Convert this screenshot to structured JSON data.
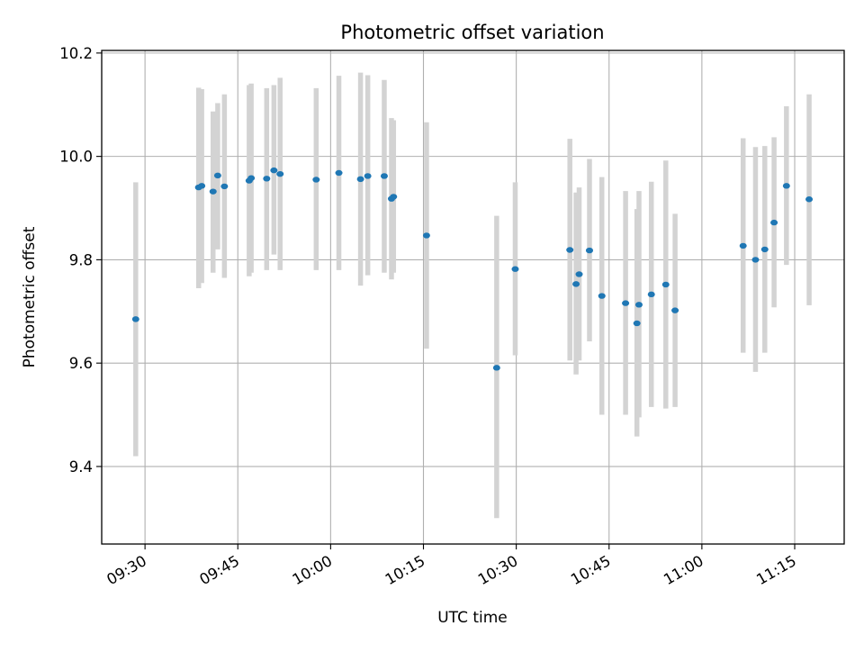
{
  "chart_data": {
    "type": "scatter",
    "title": "Photometric offset variation",
    "xlabel": "UTC time",
    "ylabel": "Photometric offset",
    "xlim": [
      "09:23",
      "11:23"
    ],
    "ylim": [
      9.25,
      10.205
    ],
    "x_ticks": [
      "09:30",
      "09:45",
      "10:00",
      "10:15",
      "10:30",
      "10:45",
      "11:00",
      "11:15"
    ],
    "y_ticks": [
      "9.4",
      "9.6",
      "9.8",
      "10.0",
      "10.2"
    ],
    "grid": true,
    "colors": {
      "marker": "#1f77b4",
      "errorbar": "#d3d3d3",
      "grid": "#b0b0b0"
    },
    "series": [
      {
        "points": [
          {
            "t": "09:28:30",
            "y": 9.685,
            "err_low": 9.42,
            "err_high": 9.95
          },
          {
            "t": "09:38:40",
            "y": 9.94,
            "err_low": 9.745,
            "err_high": 10.133
          },
          {
            "t": "09:39:10",
            "y": 9.943,
            "err_low": 9.755,
            "err_high": 10.13
          },
          {
            "t": "09:41:00",
            "y": 9.932,
            "err_low": 9.775,
            "err_high": 10.087
          },
          {
            "t": "09:41:45",
            "y": 9.963,
            "err_low": 9.82,
            "err_high": 10.103
          },
          {
            "t": "09:42:50",
            "y": 9.942,
            "err_low": 9.765,
            "err_high": 10.12
          },
          {
            "t": "09:46:50",
            "y": 9.953,
            "err_low": 9.768,
            "err_high": 10.138
          },
          {
            "t": "09:47:10",
            "y": 9.958,
            "err_low": 9.775,
            "err_high": 10.141
          },
          {
            "t": "09:49:40",
            "y": 9.957,
            "err_low": 9.78,
            "err_high": 10.132
          },
          {
            "t": "09:50:50",
            "y": 9.973,
            "err_low": 9.81,
            "err_high": 10.138
          },
          {
            "t": "09:51:50",
            "y": 9.966,
            "err_low": 9.78,
            "err_high": 10.152
          },
          {
            "t": "09:57:40",
            "y": 9.955,
            "err_low": 9.78,
            "err_high": 10.132
          },
          {
            "t": "10:01:20",
            "y": 9.968,
            "err_low": 9.78,
            "err_high": 10.156
          },
          {
            "t": "10:04:50",
            "y": 9.956,
            "err_low": 9.75,
            "err_high": 10.162
          },
          {
            "t": "10:06:00",
            "y": 9.962,
            "err_low": 9.77,
            "err_high": 10.157
          },
          {
            "t": "10:08:40",
            "y": 9.962,
            "err_low": 9.775,
            "err_high": 10.148
          },
          {
            "t": "10:09:50",
            "y": 9.918,
            "err_low": 9.762,
            "err_high": 10.074
          },
          {
            "t": "10:10:10",
            "y": 9.922,
            "err_low": 9.775,
            "err_high": 10.07
          },
          {
            "t": "10:15:30",
            "y": 9.847,
            "err_low": 9.628,
            "err_high": 10.066
          },
          {
            "t": "10:26:50",
            "y": 9.591,
            "err_low": 9.3,
            "err_high": 9.885
          },
          {
            "t": "10:29:50",
            "y": 9.782,
            "err_low": 9.615,
            "err_high": 9.95
          },
          {
            "t": "10:38:40",
            "y": 9.819,
            "err_low": 9.605,
            "err_high": 10.034
          },
          {
            "t": "10:39:40",
            "y": 9.753,
            "err_low": 9.578,
            "err_high": 9.93
          },
          {
            "t": "10:40:10",
            "y": 9.772,
            "err_low": 9.605,
            "err_high": 9.94
          },
          {
            "t": "10:41:50",
            "y": 9.818,
            "err_low": 9.642,
            "err_high": 9.995
          },
          {
            "t": "10:43:50",
            "y": 9.73,
            "err_low": 9.5,
            "err_high": 9.96
          },
          {
            "t": "10:47:40",
            "y": 9.716,
            "err_low": 9.5,
            "err_high": 9.933
          },
          {
            "t": "10:49:30",
            "y": 9.677,
            "err_low": 9.458,
            "err_high": 9.898
          },
          {
            "t": "10:49:50",
            "y": 9.713,
            "err_low": 9.495,
            "err_high": 9.933
          },
          {
            "t": "10:51:50",
            "y": 9.733,
            "err_low": 9.515,
            "err_high": 9.951
          },
          {
            "t": "10:54:10",
            "y": 9.752,
            "err_low": 9.512,
            "err_high": 9.992
          },
          {
            "t": "10:55:40",
            "y": 9.702,
            "err_low": 9.515,
            "err_high": 9.889
          },
          {
            "t": "11:06:40",
            "y": 9.827,
            "err_low": 9.62,
            "err_high": 10.035
          },
          {
            "t": "11:08:40",
            "y": 9.8,
            "err_low": 9.583,
            "err_high": 10.018
          },
          {
            "t": "11:10:10",
            "y": 9.82,
            "err_low": 9.62,
            "err_high": 10.02
          },
          {
            "t": "11:11:40",
            "y": 9.872,
            "err_low": 9.708,
            "err_high": 10.037
          },
          {
            "t": "11:13:40",
            "y": 9.943,
            "err_low": 9.79,
            "err_high": 10.097
          },
          {
            "t": "11:17:20",
            "y": 9.917,
            "err_low": 9.712,
            "err_high": 10.12
          }
        ]
      }
    ]
  }
}
